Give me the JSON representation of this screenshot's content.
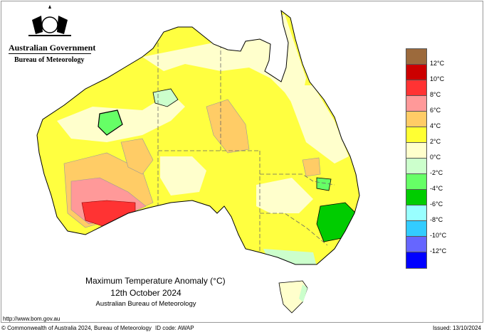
{
  "header": {
    "government": "Australian Government",
    "agency": "Bureau of Meteorology"
  },
  "map": {
    "title": "Maximum Temperature Anomaly (°C)",
    "date": "12th October 2024",
    "organisation": "Australian Bureau of Meteorology",
    "region": "Australia"
  },
  "legend": {
    "labels": [
      "12°C",
      "10°C",
      "8°C",
      "6°C",
      "4°C",
      "2°C",
      "0°C",
      "-2°C",
      "-4°C",
      "-6°C",
      "-8°C",
      "-10°C",
      "-12°C"
    ],
    "colors": [
      "#9c6a3c",
      "#cc0000",
      "#ff3333",
      "#ff9999",
      "#ffcc66",
      "#ffff33",
      "#ffffcc",
      "#ccffcc",
      "#66ff66",
      "#00cc00",
      "#99ffff",
      "#33ccff",
      "#6666ff",
      "#0000ff"
    ]
  },
  "footer": {
    "url": "http://www.bom.gov.au",
    "copyright": "© Commonwealth of Australia 2024, Bureau of Meteorology",
    "id_code": "ID code: AWAP",
    "issued": "Issued: 13/10/2024"
  }
}
